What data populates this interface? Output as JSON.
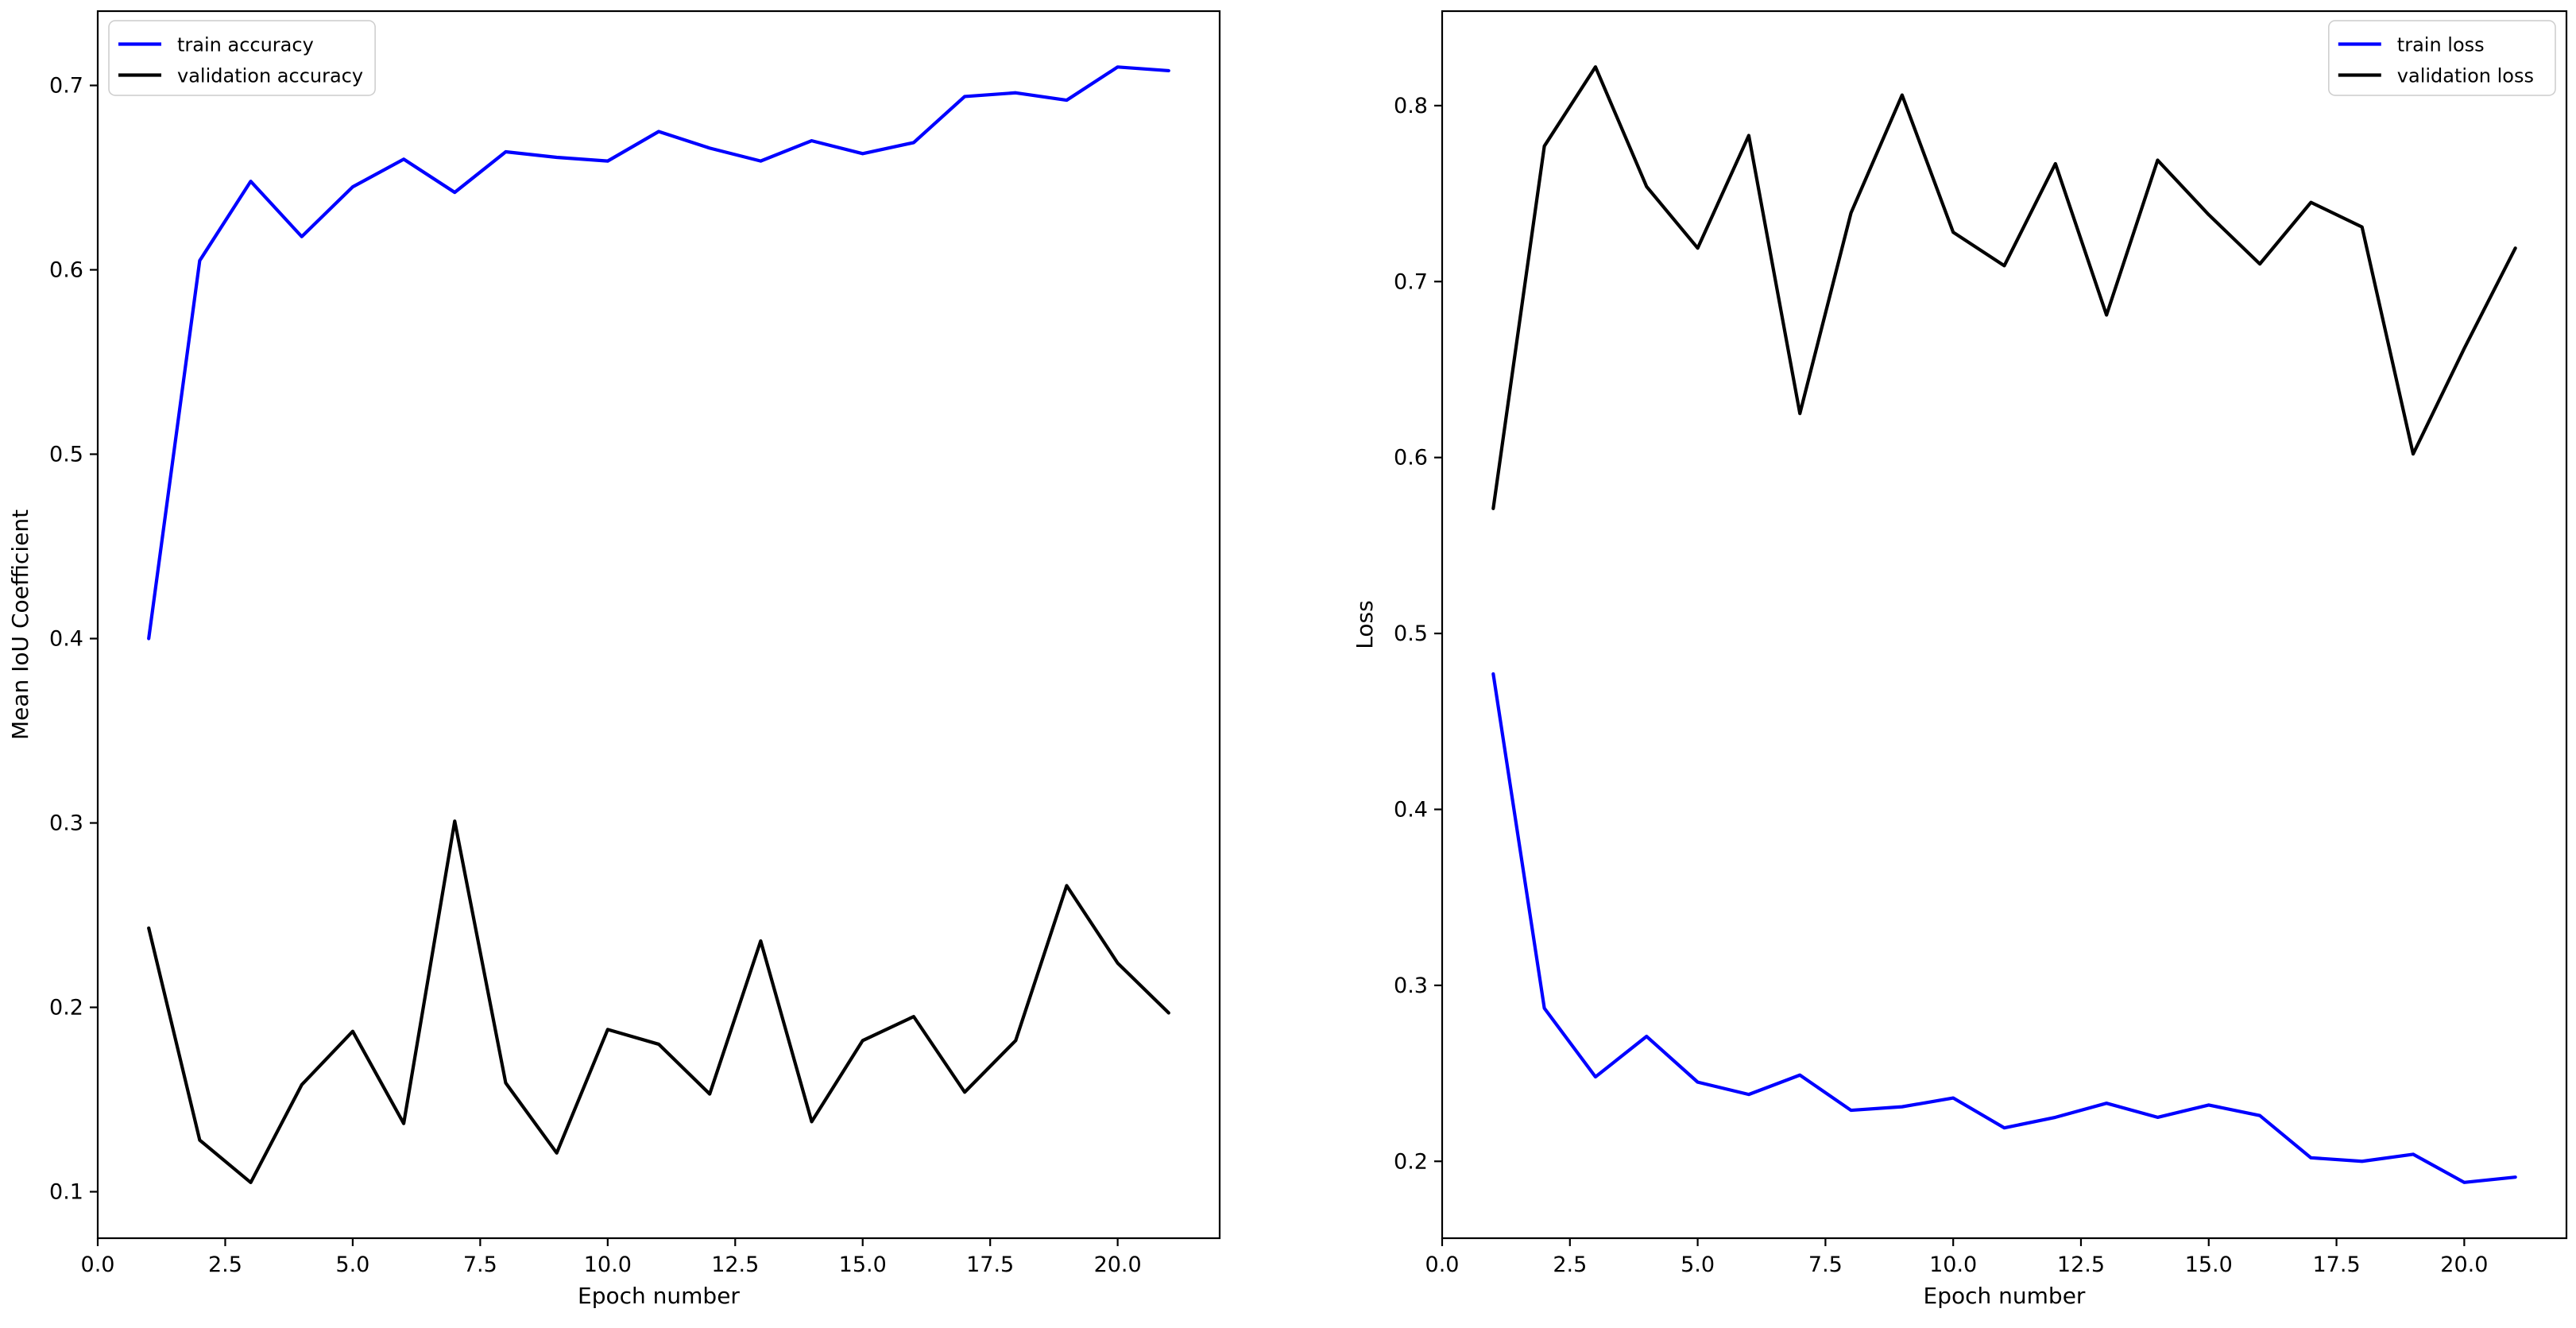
{
  "figure": {
    "background": "#ffffff",
    "text_color": "#000000",
    "spine_color": "#000000",
    "legend_edge_color": "#cccccc",
    "legend_fill": "rgba(255,255,255,0.8)"
  },
  "chart_data": [
    {
      "id": "iou",
      "type": "line",
      "title": "",
      "xlabel": "Epoch number",
      "ylabel": "Mean IoU Coefficient",
      "x": [
        1,
        2,
        3,
        4,
        5,
        6,
        7,
        8,
        9,
        10,
        11,
        12,
        13,
        14,
        15,
        16,
        17,
        18,
        19,
        20,
        21
      ],
      "series": [
        {
          "name": "train accuracy",
          "color": "#0000ff",
          "values": [
            0.4,
            0.605,
            0.648,
            0.618,
            0.645,
            0.66,
            0.642,
            0.664,
            0.661,
            0.659,
            0.675,
            0.666,
            0.659,
            0.67,
            0.663,
            0.669,
            0.694,
            0.696,
            0.692,
            0.71,
            0.708
          ]
        },
        {
          "name": "validation accuracy",
          "color": "#000000",
          "values": [
            0.243,
            0.128,
            0.105,
            0.158,
            0.187,
            0.137,
            0.301,
            0.159,
            0.121,
            0.188,
            0.18,
            0.153,
            0.236,
            0.138,
            0.182,
            0.195,
            0.154,
            0.182,
            0.266,
            0.224,
            0.197
          ]
        }
      ],
      "xlim": [
        0,
        22
      ],
      "ylim": [
        0.0748,
        0.7403
      ],
      "xticks": {
        "values": [
          0,
          2.5,
          5,
          7.5,
          10,
          12.5,
          15,
          17.5,
          20
        ],
        "labels": [
          "0.0",
          "2.5",
          "5.0",
          "7.5",
          "10.0",
          "12.5",
          "15.0",
          "17.5",
          "20.0"
        ]
      },
      "yticks": {
        "values": [
          0.1,
          0.2,
          0.3,
          0.4,
          0.5,
          0.6,
          0.7
        ],
        "labels": [
          "0.1",
          "0.2",
          "0.3",
          "0.4",
          "0.5",
          "0.6",
          "0.7"
        ]
      },
      "legend": {
        "position": "upper left",
        "entries": [
          "train accuracy",
          "validation accuracy"
        ]
      },
      "grid": false
    },
    {
      "id": "loss",
      "type": "line",
      "title": "",
      "xlabel": "Epoch number",
      "ylabel": "Loss",
      "x": [
        1,
        2,
        3,
        4,
        5,
        6,
        7,
        8,
        9,
        10,
        11,
        12,
        13,
        14,
        15,
        16,
        17,
        18,
        19,
        20,
        21
      ],
      "series": [
        {
          "name": "train loss",
          "color": "#0000ff",
          "values": [
            0.477,
            0.287,
            0.248,
            0.271,
            0.245,
            0.238,
            0.249,
            0.229,
            0.231,
            0.236,
            0.219,
            0.225,
            0.233,
            0.225,
            0.232,
            0.226,
            0.202,
            0.2,
            0.204,
            0.188,
            0.191
          ]
        },
        {
          "name": "validation loss",
          "color": "#000000",
          "values": [
            0.571,
            0.777,
            0.822,
            0.754,
            0.719,
            0.783,
            0.625,
            0.739,
            0.806,
            0.728,
            0.709,
            0.767,
            0.681,
            0.769,
            0.738,
            0.71,
            0.745,
            0.731,
            0.602,
            0.662,
            0.719
          ]
        }
      ],
      "xlim": [
        0,
        22
      ],
      "ylim": [
        0.1563,
        0.8537
      ],
      "xticks": {
        "values": [
          0,
          2.5,
          5,
          7.5,
          10,
          12.5,
          15,
          17.5,
          20
        ],
        "labels": [
          "0.0",
          "2.5",
          "5.0",
          "7.5",
          "10.0",
          "12.5",
          "15.0",
          "17.5",
          "20.0"
        ]
      },
      "yticks": {
        "values": [
          0.2,
          0.3,
          0.4,
          0.5,
          0.6,
          0.7,
          0.8
        ],
        "labels": [
          "0.2",
          "0.3",
          "0.4",
          "0.5",
          "0.6",
          "0.7",
          "0.8"
        ]
      },
      "legend": {
        "position": "upper right",
        "entries": [
          "train loss",
          "validation loss"
        ]
      },
      "grid": false
    }
  ]
}
